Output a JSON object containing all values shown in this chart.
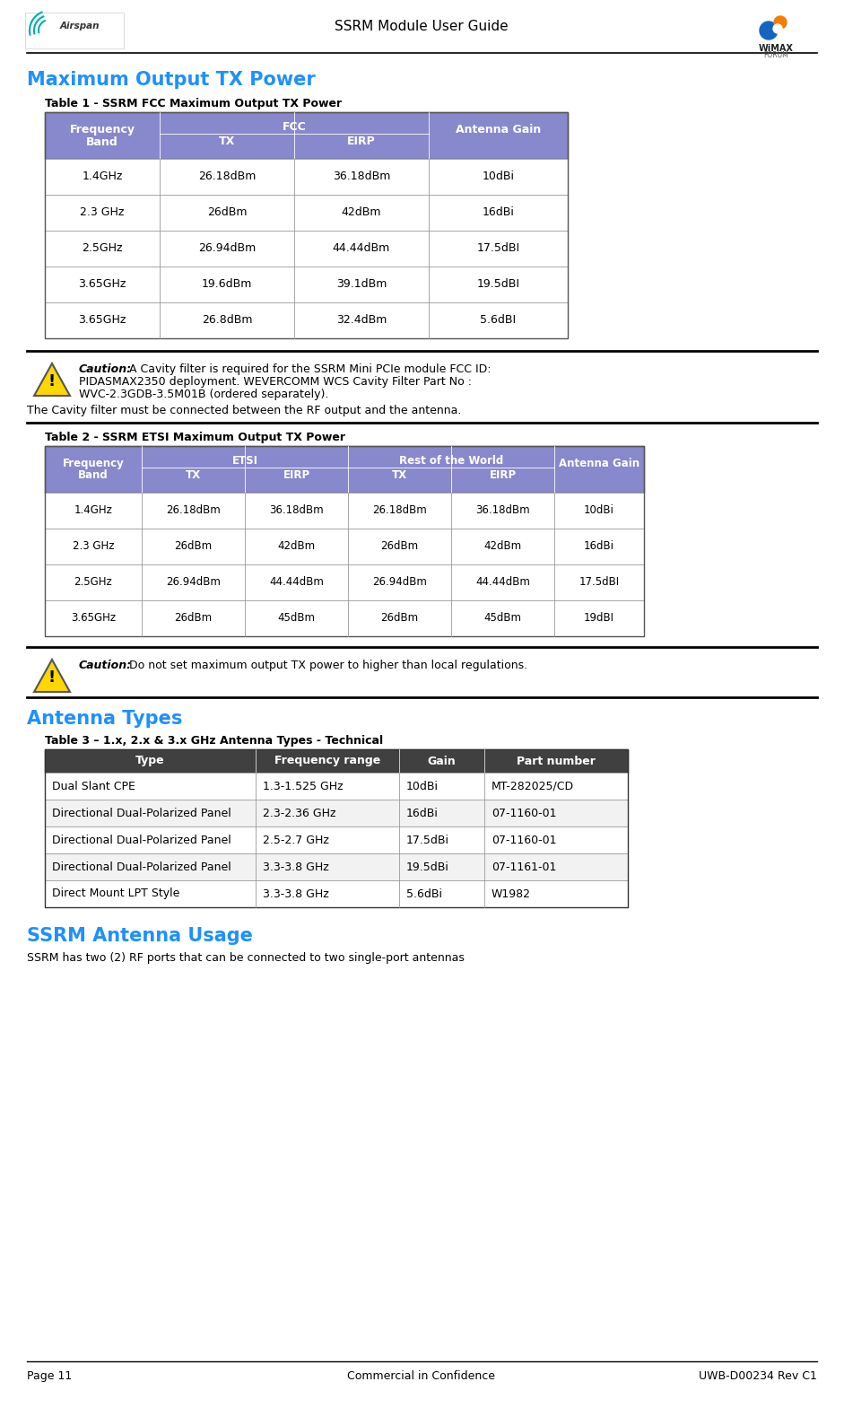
{
  "page_title": "SSRM Module User Guide",
  "section1_title": "Maximum Output TX Power",
  "table1_title": "Table 1 - SSRM FCC Maximum Output TX Power",
  "table1_rows": [
    [
      "1.4GHz",
      "26.18dBm",
      "36.18dBm",
      "10dBi"
    ],
    [
      "2.3 GHz",
      "26dBm",
      "42dBm",
      "16dBi"
    ],
    [
      "2.5GHz",
      "26.94dBm",
      "44.44dBm",
      "17.5dBI"
    ],
    [
      "3.65GHz",
      "19.6dBm",
      "39.1dBm",
      "19.5dBI"
    ],
    [
      "3.65GHz",
      "26.8dBm",
      "32.4dBm",
      "5.6dBI"
    ]
  ],
  "table_header_bg": "#8888CC",
  "table_header_fg": "#FFFFFF",
  "caution1_bold": "Caution:",
  "caution1_line1": " A Cavity filter is required for the SSRM Mini PCIe module FCC ID:",
  "caution1_line2": "PIDASMAX2350 deployment. WEVERCOMM WCS Cavity Filter Part No :",
  "caution1_line3": "WVC-2.3GDB-3.5M01B (ordered separately).",
  "caution1_line4": "The Cavity filter must be connected between the RF output and the antenna.",
  "table2_title": "Table 2 - SSRM ETSI Maximum Output TX Power",
  "table2_rows": [
    [
      "1.4GHz",
      "26.18dBm",
      "36.18dBm",
      "26.18dBm",
      "36.18dBm",
      "10dBi"
    ],
    [
      "2.3 GHz",
      "26dBm",
      "42dBm",
      "26dBm",
      "42dBm",
      "16dBi"
    ],
    [
      "2.5GHz",
      "26.94dBm",
      "44.44dBm",
      "26.94dBm",
      "44.44dBm",
      "17.5dBI"
    ],
    [
      "3.65GHz",
      "26dBm",
      "45dBm",
      "26dBm",
      "45dBm",
      "19dBI"
    ]
  ],
  "caution2_bold": "Caution:",
  "caution2_text": " Do not set maximum output TX power to higher than local regulations.",
  "section2_title": "Antenna Types",
  "table3_title": "Table 3 – 1.x, 2.x & 3.x GHz Antenna Types - Technical",
  "table3_header": [
    "Type",
    "Frequency range",
    "Gain",
    "Part number"
  ],
  "table3_rows": [
    [
      "Dual Slant CPE",
      "1.3-1.525 GHz",
      "10dBi",
      "MT-282025/CD"
    ],
    [
      "Directional Dual-Polarized Panel",
      "2.3-2.36 GHz",
      "16dBi",
      "07-1160-01"
    ],
    [
      "Directional Dual-Polarized Panel",
      "2.5-2.7 GHz",
      "17.5dBi",
      "07-1160-01"
    ],
    [
      "Directional Dual-Polarized Panel",
      "3.3-3.8 GHz",
      "19.5dBi",
      "07-1161-01"
    ],
    [
      "Direct Mount LPT Style",
      "3.3-3.8 GHz",
      "5.6dBi",
      "W1982"
    ]
  ],
  "section3_title": "SSRM Antenna Usage",
  "antenna_usage_text": "SSRM has two (2) RF ports that can be connected to two single-port antennas",
  "footer_left": "Page 11",
  "footer_center": "Commercial in Confidence",
  "footer_right": "UWB-D00234 Rev C1",
  "section_title_color": "#1E90FF",
  "table3_header_bg": "#404040",
  "accent_color": "#1E90FF"
}
